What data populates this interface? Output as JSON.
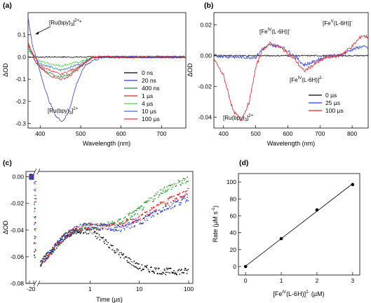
{
  "chart_data": [
    {
      "panel": "(a)",
      "type": "line",
      "xlabel": "Wavelength (nm)",
      "ylabel": "ΔOD",
      "xlim": [
        370,
        760
      ],
      "ylim": [
        -0.32,
        0.2
      ],
      "xticks": [
        400,
        500,
        600,
        700
      ],
      "yticks": [
        -0.3,
        -0.2,
        -0.1,
        0.0,
        0.1
      ],
      "yticklabels": [
        "-0.3",
        "-0.2",
        "-0.1",
        "0.0",
        "0.1"
      ],
      "annotations": [
        "[Ru(bpy)3]2+*",
        "[Ru(bpy)3]2+"
      ],
      "legend_position": "right",
      "series": [
        {
          "name": "0 ns",
          "color": "#000000",
          "x": [
            370,
            450,
            500,
            760
          ],
          "y": [
            0,
            0,
            0,
            0
          ]
        },
        {
          "name": "20 ns",
          "color": "#2b3fd6",
          "x": [
            370,
            380,
            400,
            420,
            440,
            455,
            470,
            490,
            510,
            530,
            560,
            760
          ],
          "y": [
            0.18,
            0.06,
            -0.07,
            -0.19,
            -0.27,
            -0.29,
            -0.25,
            -0.12,
            -0.04,
            -0.015,
            0,
            0
          ]
        },
        {
          "name": "400 ns",
          "color": "#2a8a3a",
          "x": [
            370,
            390,
            420,
            450,
            470,
            500,
            530,
            760
          ],
          "y": [
            0.06,
            -0.03,
            -0.07,
            -0.09,
            -0.08,
            -0.04,
            0,
            0
          ]
        },
        {
          "name": "1 µs",
          "color": "#e81c24",
          "x": [
            370,
            390,
            420,
            450,
            470,
            500,
            530,
            760
          ],
          "y": [
            0.07,
            -0.03,
            -0.08,
            -0.1,
            -0.09,
            -0.045,
            0,
            0
          ]
        },
        {
          "name": "4 µs",
          "color": "#4cd94c",
          "x": [
            370,
            400,
            450,
            500,
            530,
            760
          ],
          "y": [
            0.03,
            -0.02,
            -0.04,
            -0.02,
            0,
            0
          ]
        },
        {
          "name": "10 µs",
          "color": "#3b6fd6",
          "x": [
            370,
            400,
            450,
            500,
            530,
            760
          ],
          "y": [
            0.04,
            -0.03,
            -0.06,
            -0.03,
            0,
            0
          ]
        },
        {
          "name": "100 µs",
          "color": "#e8384a",
          "x": [
            370,
            400,
            450,
            500,
            530,
            760
          ],
          "y": [
            0.05,
            -0.04,
            -0.08,
            -0.04,
            0,
            0
          ]
        }
      ]
    },
    {
      "panel": "(b)",
      "type": "line",
      "xlabel": "Wavelength (nm)",
      "ylabel": "ΔOD",
      "xlim": [
        370,
        850
      ],
      "ylim": [
        -0.047,
        0.028
      ],
      "xticks": [
        400,
        500,
        600,
        700,
        800
      ],
      "yticks": [
        -0.04,
        -0.02,
        0.0,
        0.02
      ],
      "yticklabels": [
        "-0.04",
        "-0.02",
        "0.00",
        "0.02"
      ],
      "annotations": [
        "[FeIV(L-6H)]-",
        "[FeV(L-6H)]-",
        "[FeIV(L-6H)]2-",
        "[Ru(bpy)3]2+"
      ],
      "legend_position": "lower right",
      "series": [
        {
          "name": "0 µs",
          "color": "#000000",
          "x": [
            370,
            500,
            600,
            700,
            850
          ],
          "y": [
            0,
            0,
            0,
            0,
            0
          ]
        },
        {
          "name": "25 µs",
          "color": "#2b3fd6",
          "x": [
            370,
            450,
            500,
            520,
            545,
            580,
            620,
            650,
            680,
            720,
            760,
            800,
            830,
            850
          ],
          "y": [
            0,
            -0.001,
            -0.001,
            0.004,
            0.007,
            0.006,
            0.0,
            -0.006,
            -0.004,
            0.0,
            0.0,
            0.004,
            0.006,
            0.005
          ]
        },
        {
          "name": "100 µs",
          "color": "#e81c24",
          "x": [
            370,
            400,
            430,
            455,
            480,
            500,
            520,
            545,
            580,
            620,
            650,
            680,
            720,
            760,
            800,
            830,
            850
          ],
          "y": [
            -0.002,
            -0.013,
            -0.036,
            -0.042,
            -0.03,
            -0.008,
            0.004,
            0.008,
            0.005,
            -0.002,
            -0.01,
            -0.006,
            -0.001,
            0.0,
            0.006,
            0.013,
            0.012
          ]
        }
      ]
    },
    {
      "panel": "(c)",
      "type": "scatter",
      "xlabel": "Time (µs)",
      "ylabel": "ΔOD",
      "xlim": [
        -2,
        100
      ],
      "xscale": "linear (-2 to 0) + log (0.1 to 100)",
      "ylim": [
        -0.08,
        0.004
      ],
      "xticklabels": [
        "-2",
        "0",
        "1",
        "10",
        "100"
      ],
      "yticks": [
        0.0,
        -0.02,
        -0.04,
        -0.06,
        -0.08
      ],
      "yticklabels": [
        "0.00",
        "-0.02",
        "-0.04",
        "-0.06",
        "-0.08"
      ],
      "series": [
        {
          "color": "#000000",
          "x": [
            0.1,
            0.3,
            0.6,
            1,
            2,
            4,
            10,
            30,
            100
          ],
          "y": [
            -0.065,
            -0.045,
            -0.04,
            -0.041,
            -0.048,
            -0.058,
            -0.068,
            -0.071,
            -0.071
          ]
        },
        {
          "color": "#2a9a2a",
          "x": [
            0.1,
            0.3,
            0.6,
            1,
            2,
            4,
            10,
            30,
            100
          ],
          "y": [
            -0.065,
            -0.045,
            -0.038,
            -0.037,
            -0.037,
            -0.034,
            -0.025,
            -0.01,
            -0.002
          ]
        },
        {
          "color": "#e81c24",
          "x": [
            0.1,
            0.3,
            0.6,
            1,
            2,
            4,
            10,
            30,
            100
          ],
          "y": [
            -0.065,
            -0.045,
            -0.038,
            -0.037,
            -0.038,
            -0.037,
            -0.031,
            -0.02,
            -0.011
          ]
        },
        {
          "color": "#2b3fd6",
          "x": [
            0.1,
            0.3,
            0.6,
            1,
            2,
            4,
            10,
            30,
            100
          ],
          "y": [
            -0.065,
            -0.045,
            -0.038,
            -0.037,
            -0.038,
            -0.039,
            -0.034,
            -0.024,
            -0.016
          ]
        }
      ]
    },
    {
      "panel": "(d)",
      "type": "scatter",
      "xlabel": "[FeIV(L-6H)]2- (µM)",
      "ylabel": "Rate (µM s-1)",
      "xlim": [
        -0.2,
        3.2
      ],
      "ylim": [
        -10,
        110
      ],
      "xticks": [
        0,
        1,
        2,
        3
      ],
      "yticks": [
        0,
        20,
        40,
        60,
        80,
        100
      ],
      "x": [
        0,
        1,
        2,
        3
      ],
      "y": [
        0,
        33,
        67,
        97
      ],
      "fit": "linear"
    }
  ],
  "labels": {
    "a_panel": "(a)",
    "a_xlabel": "Wavelength (nm)",
    "a_ylabel": "ΔOD",
    "a_ann_star": "[Ru(bpy)",
    "a_ann_star_sub": "3",
    "a_ann_star_sup": "2+",
    "a_ann_star_tail": "*",
    "a_ann_gs": "[Ru(bpy)",
    "a_ann_gs_sub": "3",
    "a_ann_gs_tail": "]",
    "a_ann_gs_sup": "2+",
    "b_panel": "(b)",
    "b_xlabel": "Wavelength (nm)",
    "b_ylabel": "ΔOD",
    "b_ann1_pre": "[Fe",
    "b_ann1_sup": "IV",
    "b_ann1_mid": "(L-6H)]",
    "b_ann1_sup2": "-",
    "b_ann2_pre": "[Fe",
    "b_ann2_sup": "V",
    "b_ann2_mid": "(L-6H)]",
    "b_ann2_sup2": "-",
    "b_ann3_pre": "[Fe",
    "b_ann3_sup": "IV",
    "b_ann3_mid": "(L-6H)]",
    "b_ann3_sup2": "2-",
    "b_ann4_pre": "[Ru(bpy)",
    "b_ann4_sub": "3",
    "b_ann4_mid": "]",
    "b_ann4_sup": "2+",
    "c_panel": "(c)",
    "c_xlabel": "Time (µs)",
    "c_ylabel": "ΔOD",
    "d_panel": "(d)",
    "d_xlabel_pre": "[Fe",
    "d_xlabel_sup": "IV",
    "d_xlabel_mid": "(L-6H)]",
    "d_xlabel_sup2": "2-",
    "d_xlabel_tail": " (µM)",
    "d_ylabel_pre": "Rate (µM s",
    "d_ylabel_sup": "-1",
    "d_ylabel_tail": ")"
  }
}
